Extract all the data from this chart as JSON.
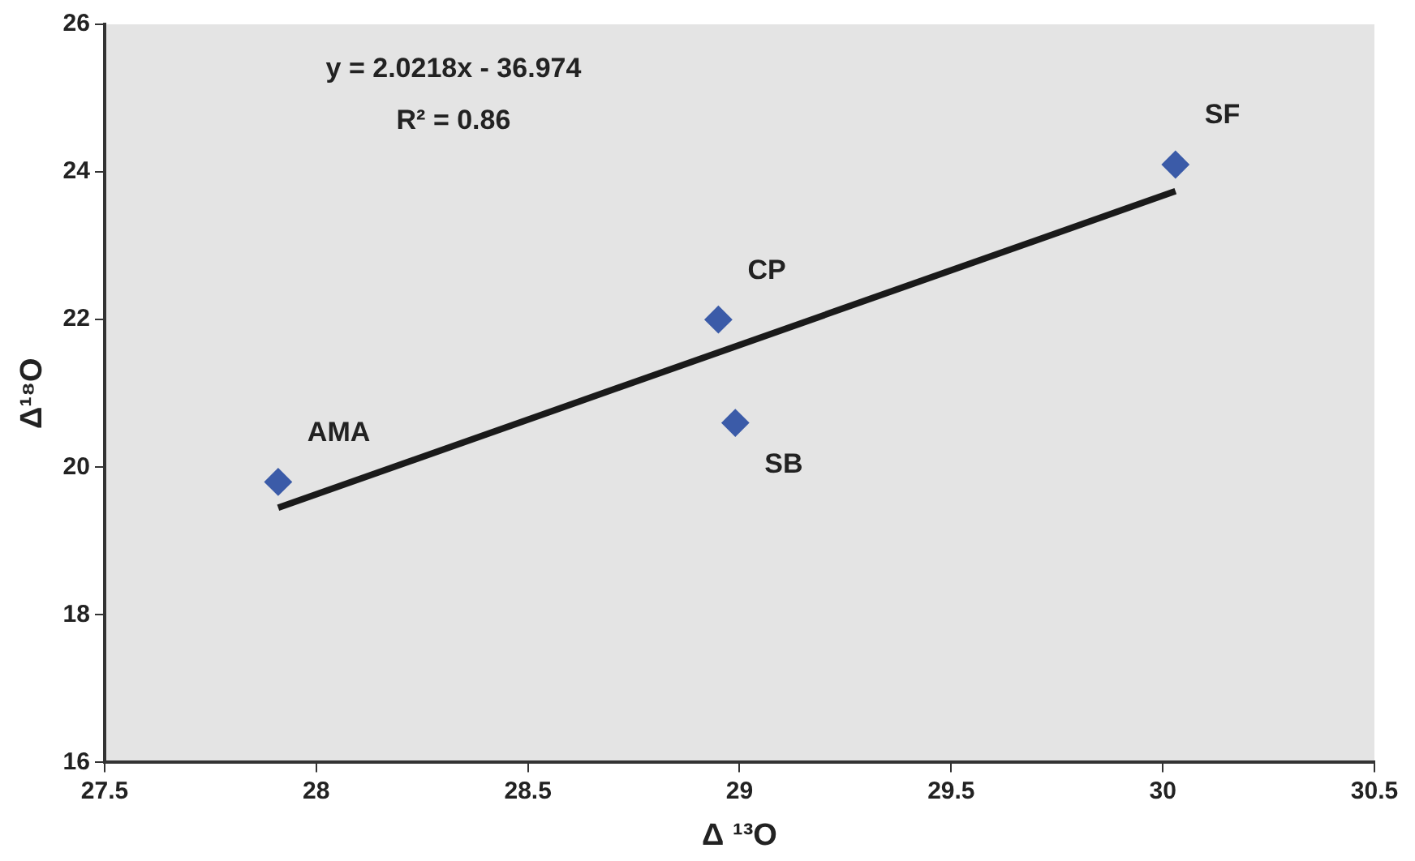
{
  "chart_data": {
    "type": "scatter",
    "xlabel": "Δ ¹³O",
    "ylabel": "Δ¹⁸O",
    "series": [
      {
        "type": "scatter",
        "x": [
          27.91,
          28.95,
          28.99,
          30.03
        ],
        "values": [
          19.8,
          22.0,
          20.6,
          24.1
        ],
        "color": "#3b5ba8",
        "marker": "diamond"
      },
      {
        "type": "line",
        "x": [
          27.91,
          30.03
        ],
        "values": [
          19.45,
          23.74
        ],
        "color": "#1a1a1a",
        "marker": "none"
      }
    ],
    "xlim": [
      27.5,
      30.5
    ],
    "xticks": [
      27.5,
      28,
      28.5,
      29,
      29.5,
      30,
      30.5
    ],
    "ylim": [
      16,
      26
    ],
    "yticks": [
      16,
      18,
      20,
      22,
      24,
      26
    ],
    "grid": false,
    "legend": false,
    "annotations": [
      "y = 2.0218x - 36.974",
      "R² = 0.86",
      {
        "text": "AMA",
        "x": 27.91,
        "y": 19.8
      },
      {
        "text": "CP",
        "x": 28.95,
        "y": 22.0
      },
      {
        "text": "SB",
        "x": 28.99,
        "y": 20.6
      },
      {
        "text": "SF",
        "x": 30.03,
        "y": 24.1
      }
    ]
  }
}
